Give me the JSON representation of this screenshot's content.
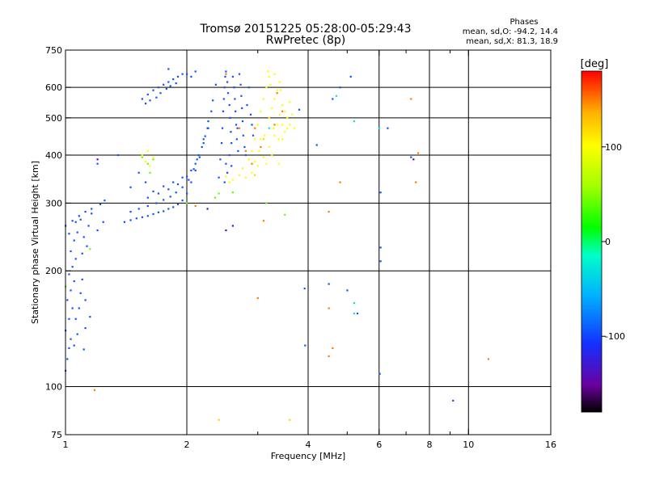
{
  "chart_data": {
    "type": "scatter",
    "title": "Tromsø 20151225 05:28:00-05:29:43",
    "subtitle": "RwPretec (8p)",
    "xlabel": "Frequency [MHz]",
    "ylabel": "Stationary phase Virtual Height [km]",
    "x_scale": "log",
    "y_scale": "log",
    "xlim": [
      1,
      16
    ],
    "ylim": [
      75,
      750
    ],
    "x_ticks": [
      1,
      2,
      4,
      6,
      8,
      10,
      16
    ],
    "x_tick_labels": [
      "1",
      "2",
      "4",
      "6",
      "8",
      "10",
      "16"
    ],
    "x_minor_ticks": [
      3,
      5,
      7,
      9
    ],
    "y_ticks": [
      75,
      100,
      200,
      300,
      400,
      500,
      600,
      750
    ],
    "y_tick_labels": [
      "75",
      "100",
      "200",
      "300",
      "400",
      "500",
      "600",
      "750"
    ],
    "y_gridlines": [
      100,
      200,
      300,
      400,
      500,
      600
    ],
    "x_gridlines": [
      2,
      4,
      6,
      8,
      10
    ],
    "grid": true,
    "stats": {
      "header": "Phases",
      "line_O": "mean, sd,O: -94.2, 14.4",
      "line_X": "mean, sd,X: 81.3, 18.9"
    },
    "colorbar": {
      "label": "[deg]",
      "min": -180,
      "max": 180,
      "ticks": [
        -100,
        0,
        100
      ],
      "tick_labels": [
        "-100",
        "0",
        "100"
      ],
      "colors": [
        "#000000",
        "#6a00a0",
        "#1430ff",
        "#00b0ff",
        "#00ffc8",
        "#00ff00",
        "#a0ff00",
        "#ffff00",
        "#ffb000",
        "#ff0000"
      ]
    },
    "series": [
      {
        "phase": -95,
        "points": [
          [
            1.0,
            110
          ],
          [
            1.01,
            118
          ],
          [
            1.02,
            126
          ],
          [
            1.03,
            133
          ],
          [
            1.0,
            140
          ],
          [
            1.02,
            150
          ],
          [
            1.04,
            160
          ],
          [
            1.01,
            168
          ],
          [
            1.03,
            178
          ],
          [
            1.05,
            188
          ],
          [
            1.02,
            196
          ],
          [
            1.04,
            205
          ],
          [
            1.06,
            215
          ],
          [
            1.03,
            225
          ],
          [
            1.05,
            240
          ],
          [
            1.07,
            252
          ],
          [
            1.0,
            262
          ],
          [
            1.04,
            270
          ],
          [
            1.08,
            278
          ],
          [
            1.12,
            285
          ],
          [
            1.16,
            290
          ],
          [
            1.09,
            272
          ],
          [
            1.11,
            245
          ],
          [
            1.13,
            232
          ],
          [
            1.1,
            222
          ],
          [
            1.1,
            190
          ],
          [
            1.09,
            175
          ],
          [
            1.08,
            160
          ],
          [
            1.06,
            150
          ],
          [
            1.07,
            137
          ],
          [
            1.05,
            128
          ],
          [
            1.11,
            125
          ],
          [
            1.12,
            142
          ],
          [
            1.15,
            152
          ],
          [
            1.12,
            168
          ],
          [
            1.2,
            255
          ],
          [
            1.24,
            268
          ],
          [
            1.16,
            282
          ],
          [
            1.22,
            298
          ],
          [
            1.25,
            305
          ],
          [
            1.06,
            268
          ],
          [
            1.14,
            262
          ],
          [
            1.02,
            250
          ],
          [
            1.4,
            268
          ],
          [
            1.45,
            271
          ],
          [
            1.5,
            274
          ],
          [
            1.55,
            276
          ],
          [
            1.6,
            278
          ],
          [
            1.65,
            281
          ],
          [
            1.7,
            284
          ],
          [
            1.75,
            286
          ],
          [
            1.8,
            290
          ],
          [
            1.85,
            293
          ],
          [
            1.9,
            298
          ],
          [
            1.95,
            305
          ],
          [
            2.0,
            318
          ],
          [
            2.05,
            340
          ],
          [
            2.1,
            365
          ],
          [
            2.15,
            395
          ],
          [
            2.2,
            430
          ],
          [
            2.25,
            470
          ],
          [
            2.3,
            520
          ],
          [
            1.45,
            285
          ],
          [
            1.52,
            290
          ],
          [
            1.6,
            295
          ],
          [
            1.68,
            300
          ],
          [
            1.75,
            306
          ],
          [
            1.82,
            312
          ],
          [
            1.88,
            320
          ],
          [
            1.95,
            330
          ],
          [
            2.02,
            345
          ],
          [
            2.08,
            368
          ],
          [
            2.14,
            400
          ],
          [
            2.2,
            440
          ],
          [
            2.26,
            490
          ],
          [
            2.32,
            555
          ],
          [
            2.36,
            610
          ],
          [
            1.6,
            310
          ],
          [
            1.7,
            318
          ],
          [
            1.8,
            326
          ],
          [
            1.9,
            336
          ],
          [
            2.0,
            352
          ],
          [
            2.1,
            380
          ],
          [
            2.18,
            420
          ],
          [
            2.26,
            470
          ],
          [
            1.65,
            322
          ],
          [
            1.75,
            332
          ],
          [
            1.85,
            340
          ],
          [
            1.95,
            350
          ],
          [
            2.05,
            365
          ],
          [
            2.12,
            390
          ],
          [
            2.22,
            448
          ],
          [
            2.4,
            350
          ],
          [
            2.42,
            390
          ],
          [
            2.44,
            430
          ],
          [
            2.45,
            470
          ],
          [
            2.46,
            520
          ],
          [
            2.47,
            560
          ],
          [
            2.48,
            600
          ],
          [
            2.49,
            640
          ],
          [
            2.5,
            660
          ],
          [
            2.52,
            620
          ],
          [
            2.53,
            580
          ],
          [
            2.55,
            540
          ],
          [
            2.56,
            500
          ],
          [
            2.57,
            460
          ],
          [
            2.58,
            430
          ],
          [
            2.55,
            400
          ],
          [
            2.5,
            380
          ],
          [
            2.6,
            640
          ],
          [
            2.62,
            600
          ],
          [
            2.63,
            560
          ],
          [
            2.64,
            520
          ],
          [
            2.65,
            480
          ],
          [
            2.66,
            440
          ],
          [
            2.68,
            410
          ],
          [
            2.67,
            470
          ],
          [
            2.7,
            650
          ],
          [
            2.72,
            610
          ],
          [
            2.73,
            570
          ],
          [
            2.74,
            530
          ],
          [
            2.75,
            490
          ],
          [
            2.76,
            450
          ],
          [
            2.78,
            420
          ],
          [
            2.8,
            400
          ],
          [
            2.82,
            540
          ],
          [
            2.85,
            600
          ],
          [
            2.88,
            510
          ],
          [
            2.9,
            480
          ],
          [
            2.92,
            450
          ],
          [
            2.48,
            340
          ],
          [
            2.52,
            360
          ],
          [
            2.58,
            375
          ],
          [
            1.55,
            560
          ],
          [
            1.6,
            575
          ],
          [
            1.65,
            590
          ],
          [
            1.7,
            600
          ],
          [
            1.75,
            610
          ],
          [
            1.8,
            620
          ],
          [
            1.85,
            630
          ],
          [
            1.9,
            640
          ],
          [
            1.95,
            650
          ],
          [
            1.58,
            545
          ],
          [
            1.62,
            555
          ],
          [
            1.68,
            565
          ],
          [
            1.72,
            580
          ],
          [
            1.78,
            595
          ],
          [
            1.82,
            605
          ],
          [
            1.88,
            615
          ],
          [
            2.0,
            650
          ],
          [
            2.05,
            640
          ],
          [
            2.1,
            660
          ],
          [
            1.8,
            670
          ],
          [
            1.35,
            400
          ],
          [
            1.2,
            380
          ],
          [
            1.52,
            360
          ],
          [
            1.58,
            340
          ],
          [
            1.45,
            330
          ],
          [
            4.6,
            560
          ],
          [
            5.1,
            640
          ],
          [
            4.8,
            600
          ],
          [
            6.3,
            470
          ],
          [
            6.05,
            320
          ],
          [
            6.05,
            230
          ],
          [
            6.05,
            212
          ],
          [
            3.92,
            180
          ],
          [
            4.5,
            185
          ],
          [
            5.0,
            178
          ],
          [
            3.93,
            128
          ],
          [
            5.3,
            155
          ],
          [
            6.02,
            108
          ],
          [
            9.15,
            92
          ],
          [
            7.2,
            395
          ],
          [
            4.2,
            425
          ],
          [
            3.8,
            525
          ]
        ]
      },
      {
        "phase": 100,
        "points": [
          [
            2.8,
            350
          ],
          [
            2.9,
            360
          ],
          [
            3.0,
            375
          ],
          [
            3.1,
            395
          ],
          [
            3.2,
            420
          ],
          [
            3.3,
            450
          ],
          [
            3.35,
            480
          ],
          [
            3.4,
            510
          ],
          [
            3.45,
            480
          ],
          [
            3.5,
            460
          ],
          [
            3.55,
            470
          ],
          [
            3.6,
            480
          ],
          [
            3.2,
            500
          ],
          [
            3.25,
            530
          ],
          [
            3.3,
            560
          ],
          [
            3.35,
            590
          ],
          [
            3.4,
            620
          ],
          [
            3.3,
            650
          ],
          [
            3.2,
            640
          ],
          [
            3.15,
            600
          ],
          [
            3.1,
            560
          ],
          [
            3.05,
            520
          ],
          [
            3.0,
            480
          ],
          [
            2.95,
            440
          ],
          [
            2.9,
            410
          ],
          [
            2.85,
            390
          ],
          [
            2.75,
            370
          ],
          [
            2.7,
            355
          ],
          [
            2.6,
            345
          ],
          [
            2.55,
            340
          ],
          [
            2.5,
            352
          ],
          [
            3.5,
            520
          ],
          [
            3.6,
            550
          ],
          [
            3.55,
            500
          ],
          [
            3.7,
            470
          ],
          [
            3.38,
            440
          ],
          [
            3.28,
            470
          ],
          [
            3.12,
            450
          ],
          [
            3.02,
            410
          ],
          [
            2.95,
            385
          ],
          [
            3.15,
            380
          ],
          [
            3.25,
            400
          ],
          [
            3.45,
            540
          ],
          [
            3.65,
            510
          ],
          [
            3.05,
            440
          ],
          [
            3.22,
            610
          ],
          [
            3.42,
            590
          ],
          [
            1.55,
            400
          ],
          [
            1.58,
            385
          ],
          [
            1.62,
            375
          ],
          [
            1.6,
            410
          ],
          [
            1.65,
            395
          ],
          [
            3.18,
            660
          ],
          [
            3.38,
            380
          ],
          [
            3.45,
            440
          ]
        ]
      },
      {
        "phase": 40,
        "points": [
          [
            1.55,
            395
          ],
          [
            1.6,
            380
          ],
          [
            1.62,
            360
          ],
          [
            1.65,
            390
          ],
          [
            2.35,
            310
          ],
          [
            2.4,
            318
          ],
          [
            3.15,
            300
          ],
          [
            2.6,
            320
          ],
          [
            1.0,
            182
          ],
          [
            1.15,
            228
          ],
          [
            3.5,
            280
          ],
          [
            2.0,
            300
          ]
        ]
      },
      {
        "phase": 150,
        "points": [
          [
            2.7,
            470
          ],
          [
            2.9,
            380
          ],
          [
            3.05,
            420
          ],
          [
            2.8,
            410
          ],
          [
            3.3,
            480
          ],
          [
            3.45,
            520
          ],
          [
            2.95,
            470
          ],
          [
            3.35,
            580
          ],
          [
            4.5,
            285
          ],
          [
            4.8,
            340
          ],
          [
            7.2,
            560
          ],
          [
            7.5,
            405
          ],
          [
            7.4,
            340
          ],
          [
            11.2,
            118
          ],
          [
            4.5,
            120
          ],
          [
            4.6,
            126
          ],
          [
            3.0,
            170
          ],
          [
            4.5,
            160
          ],
          [
            1.18,
            98
          ],
          [
            2.1,
            295
          ],
          [
            3.1,
            270
          ],
          [
            2.5,
            650
          ]
        ]
      },
      {
        "phase": -25,
        "points": [
          [
            6.0,
            470
          ],
          [
            5.2,
            490
          ],
          [
            4.7,
            570
          ],
          [
            5.2,
            155
          ],
          [
            5.2,
            165
          ],
          [
            3.2,
            470
          ]
        ]
      },
      {
        "phase": -140,
        "points": [
          [
            2.5,
            255
          ],
          [
            2.6,
            262
          ],
          [
            1.2,
            390
          ],
          [
            7.3,
            390
          ],
          [
            2.25,
            290
          ]
        ]
      },
      {
        "phase": 120,
        "points": [
          [
            2.4,
            82
          ],
          [
            3.6,
            82
          ],
          [
            3.1,
            440
          ],
          [
            2.95,
            355
          ]
        ]
      }
    ]
  }
}
